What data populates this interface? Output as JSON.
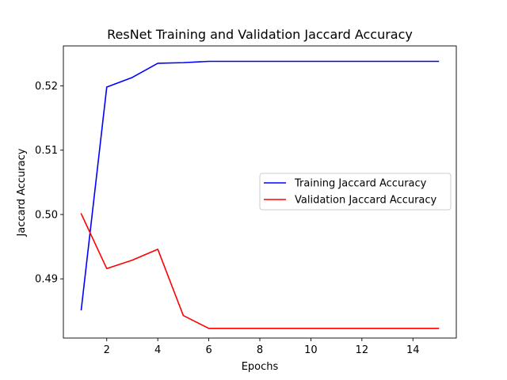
{
  "chart_data": {
    "type": "line",
    "title": "ResNet Training and Validation Jaccard Accuracy",
    "xlabel": "Epochs",
    "ylabel": "Jaccard Accuracy",
    "xlim": [
      0.3,
      15.7
    ],
    "ylim": [
      0.4808,
      0.5262
    ],
    "xticks": [
      2,
      4,
      6,
      8,
      10,
      12,
      14
    ],
    "yticks": [
      0.49,
      0.5,
      0.51,
      0.52
    ],
    "ytick_labels": [
      "0.49",
      "0.50",
      "0.51",
      "0.52"
    ],
    "grid": false,
    "legend_position": "center-right",
    "x": [
      1,
      2,
      3,
      4,
      5,
      6,
      7,
      8,
      9,
      10,
      11,
      12,
      13,
      14,
      15
    ],
    "series": [
      {
        "name": "Training Jaccard Accuracy",
        "color": "#0000ff",
        "values": [
          0.4852,
          0.5198,
          0.5213,
          0.5235,
          0.5236,
          0.5238,
          0.5238,
          0.5238,
          0.5238,
          0.5238,
          0.5238,
          0.5238,
          0.5238,
          0.5238,
          0.5238
        ]
      },
      {
        "name": "Validation Jaccard Accuracy",
        "color": "#ff0000",
        "values": [
          0.5001,
          0.4916,
          0.4929,
          0.4946,
          0.4843,
          0.4823,
          0.4823,
          0.4823,
          0.4823,
          0.4823,
          0.4823,
          0.4823,
          0.4823,
          0.4823,
          0.4823
        ]
      }
    ]
  }
}
